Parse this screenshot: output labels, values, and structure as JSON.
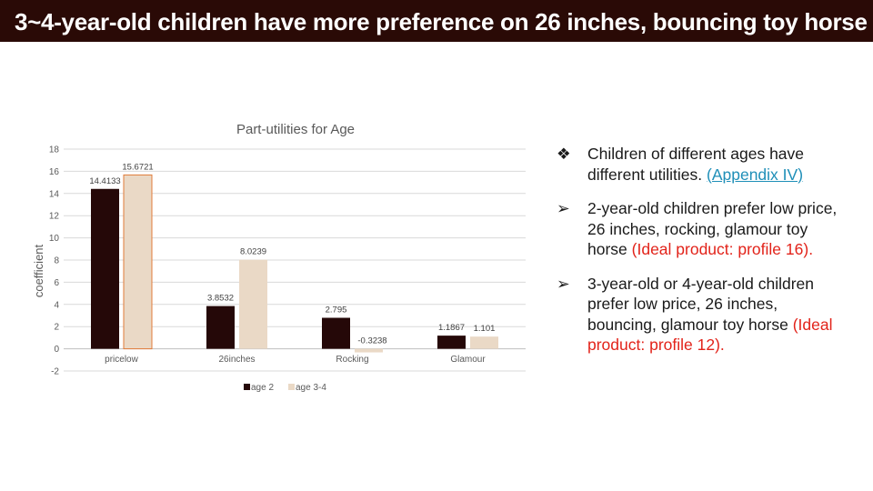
{
  "title": "3~4-year-old children have more preference on 26 inches, bouncing toy horse",
  "colors": {
    "title_bg": "#2a0a06",
    "age2": "#250808",
    "age34": "#ead9c6",
    "link": "#1f8fb8",
    "highlight": "#e2231a"
  },
  "chart_data": {
    "type": "bar",
    "title": "Part-utilities for Age",
    "xlabel": "",
    "ylabel": "coefficient",
    "categories": [
      "pricelow",
      "26inches",
      "Rocking",
      "Glamour"
    ],
    "series": [
      {
        "name": "age 2",
        "values": [
          14.4133,
          3.8532,
          2.795,
          1.1867
        ],
        "labels": [
          "14.4133",
          "3.8532",
          "2.795",
          "1.1867"
        ],
        "color": "#250808"
      },
      {
        "name": "age 3-4",
        "values": [
          15.6721,
          8.0239,
          -0.3238,
          1.101
        ],
        "labels": [
          "15.6721",
          "8.0239",
          "-0.3238",
          "1.101"
        ],
        "color": "#ead9c6"
      }
    ],
    "ylim": [
      -2,
      18
    ],
    "yticks": [
      "-2",
      "0",
      "2",
      "4",
      "6",
      "8",
      "10",
      "12",
      "14",
      "16",
      "18"
    ],
    "grid": true,
    "legend": "bottom"
  },
  "bullets": [
    {
      "icon": "diamond-bullet-icon",
      "mark": "❖",
      "parts": [
        {
          "text": "Children of different ages have different utilities. ",
          "style": "normal"
        },
        {
          "text": "(Appendix IV)",
          "style": "link"
        }
      ]
    },
    {
      "icon": "arrow-bullet-icon",
      "mark": "➢",
      "parts": [
        {
          "text": "2-year-old children prefer low price, 26 inches, rocking, glamour toy horse ",
          "style": "normal"
        },
        {
          "text": "(Ideal product: profile 16).",
          "style": "red"
        }
      ]
    },
    {
      "icon": "arrow-bullet-icon",
      "mark": "➢",
      "parts": [
        {
          "text": "3-year-old or 4-year-old children prefer low price, 26 inches, bouncing, glamour toy horse ",
          "style": "normal"
        },
        {
          "text": "(Ideal product: profile 12).",
          "style": "red"
        }
      ]
    }
  ]
}
